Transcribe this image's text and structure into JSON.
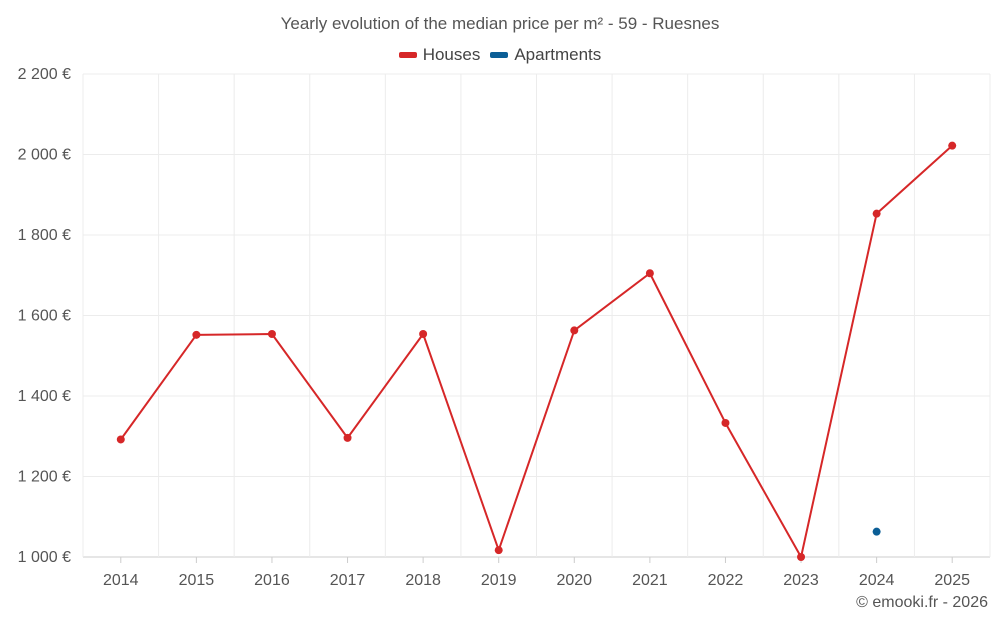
{
  "chart_data": {
    "type": "line",
    "title": "Yearly evolution of the median price per m² - 59 - Ruesnes",
    "categories": [
      "2014",
      "2015",
      "2016",
      "2017",
      "2018",
      "2019",
      "2020",
      "2021",
      "2022",
      "2023",
      "2024",
      "2025"
    ],
    "series": [
      {
        "name": "Houses",
        "color": "#d62728",
        "values": [
          1292,
          1552,
          1554,
          1296,
          1554,
          1017,
          1563,
          1705,
          1333,
          1000,
          1853,
          2022
        ]
      },
      {
        "name": "Apartments",
        "color": "#0b5e96",
        "values": [
          null,
          null,
          null,
          null,
          null,
          null,
          null,
          null,
          null,
          null,
          1063,
          null
        ]
      }
    ],
    "ylim": [
      1000,
      2200
    ],
    "yticks": [
      1000,
      1200,
      1400,
      1600,
      1800,
      2000,
      2200
    ],
    "ytick_labels": [
      "1 000 €",
      "1 200 €",
      "1 400 €",
      "1 600 €",
      "1 800 €",
      "2 000 €",
      "2 200 €"
    ],
    "grid": true,
    "legend_position": "top-center",
    "xlabel": "",
    "ylabel": ""
  },
  "footer": {
    "credit": "© emooki.fr - 2026"
  }
}
